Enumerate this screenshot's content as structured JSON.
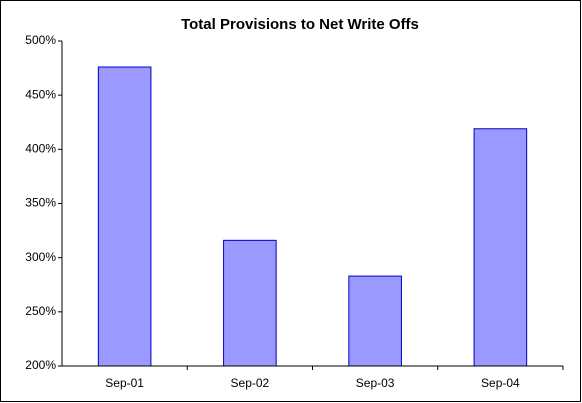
{
  "chart_data": {
    "type": "bar",
    "title": "Total Provisions to Net Write Offs",
    "categories": [
      "Sep-01",
      "Sep-02",
      "Sep-03",
      "Sep-04"
    ],
    "values": [
      476,
      316,
      283,
      419
    ],
    "color": "#9999ff",
    "ylim": [
      200,
      500
    ],
    "yticks": [
      {
        "value": 200,
        "label": "200%"
      },
      {
        "value": 250,
        "label": "250%"
      },
      {
        "value": 300,
        "label": "300%"
      },
      {
        "value": 350,
        "label": "350%"
      },
      {
        "value": 400,
        "label": "400%"
      },
      {
        "value": 450,
        "label": "450%"
      },
      {
        "value": 500,
        "label": "500%"
      }
    ],
    "grid": false
  }
}
